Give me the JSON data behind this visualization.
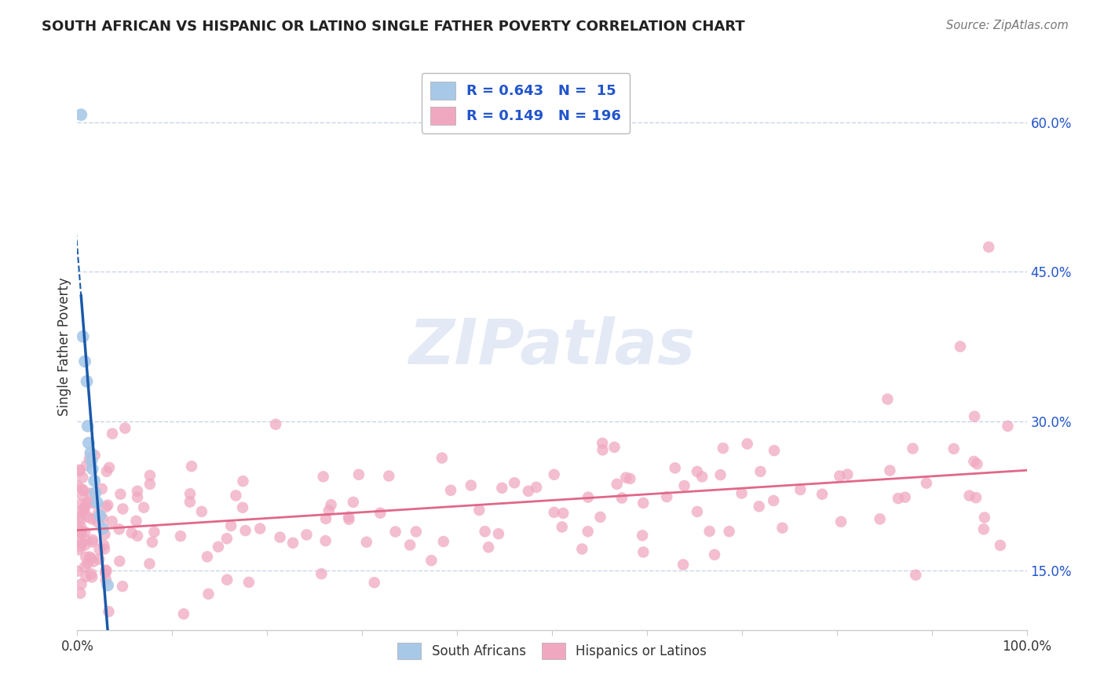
{
  "title": "SOUTH AFRICAN VS HISPANIC OR LATINO SINGLE FATHER POVERTY CORRELATION CHART",
  "source": "Source: ZipAtlas.com",
  "ylabel": "Single Father Poverty",
  "watermark": "ZIPatlas",
  "blue_R": 0.643,
  "blue_N": 15,
  "pink_R": 0.149,
  "pink_N": 196,
  "blue_color": "#a8c8e8",
  "pink_color": "#f0a8c0",
  "blue_line_color": "#1a5aaa",
  "pink_line_color": "#e06888",
  "xlim": [
    0,
    1.0
  ],
  "ylim": [
    0.09,
    0.66
  ],
  "yticks": [
    0.15,
    0.3,
    0.45,
    0.6
  ],
  "xtick_positions": [
    0.0,
    0.1,
    0.2,
    0.3,
    0.4,
    0.5,
    0.6,
    0.7,
    0.8,
    0.9,
    1.0
  ],
  "legend_labels": [
    "South Africans",
    "Hispanics or Latinos"
  ],
  "background_color": "#ffffff",
  "grid_color": "#c8d4e8",
  "text_color": "#333333",
  "axis_color": "#cccccc",
  "tick_label_color": "#2255cc"
}
